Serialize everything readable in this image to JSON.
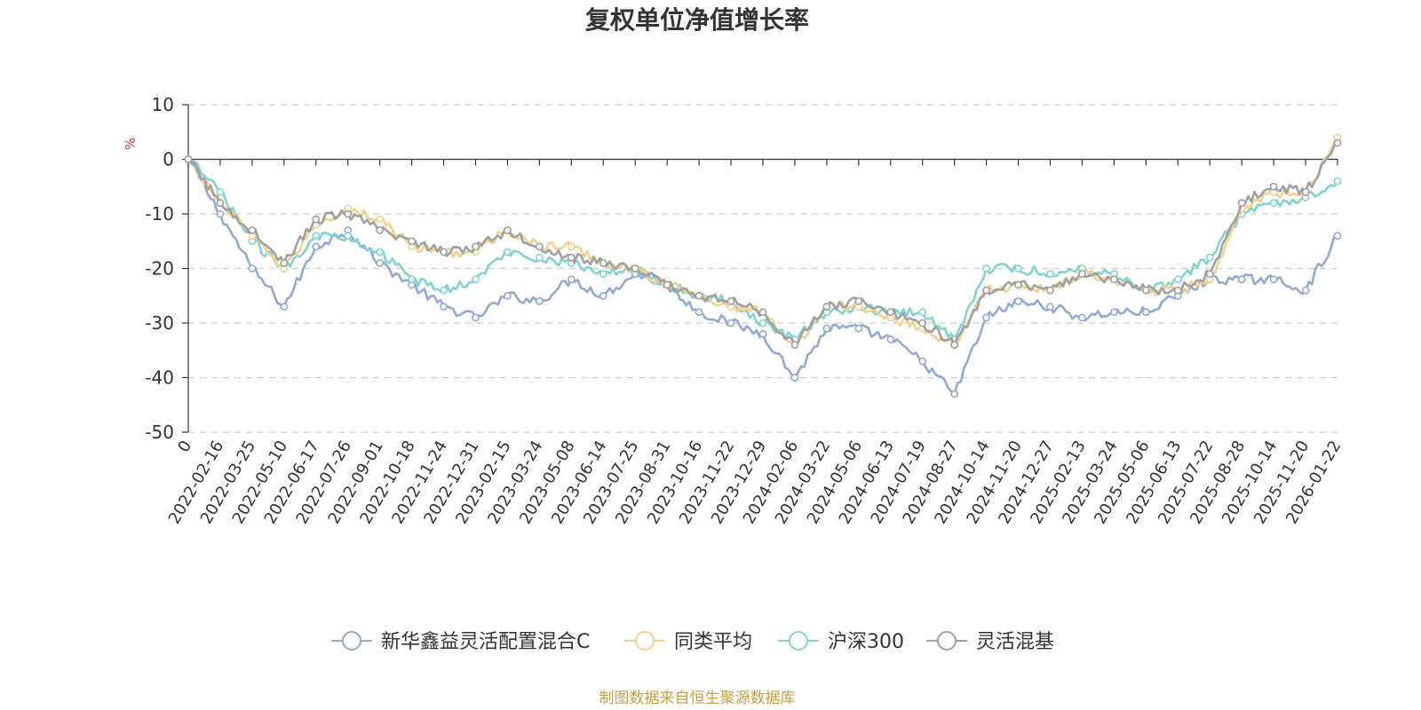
{
  "chart_data": {
    "type": "line",
    "title": "复权单位净值增长率",
    "ylabel": "%",
    "ylim": [
      -50,
      10
    ],
    "yticks": [
      10,
      0,
      -10,
      -20,
      -30,
      -40,
      -50
    ],
    "grid": true,
    "legend_position": "bottom",
    "source_note": "制图数据来自恒生聚源数据库",
    "x": [
      "0",
      "2022-02-16",
      "2022-03-25",
      "2022-05-10",
      "2022-06-17",
      "2022-07-26",
      "2022-09-01",
      "2022-10-18",
      "2022-11-24",
      "2022-12-31",
      "2023-02-15",
      "2023-03-24",
      "2023-05-08",
      "2023-06-14",
      "2023-07-25",
      "2023-08-31",
      "2023-10-16",
      "2023-11-22",
      "2023-12-29",
      "2024-02-06",
      "2024-03-22",
      "2024-05-06",
      "2024-06-13",
      "2024-07-19",
      "2024-08-27",
      "2024-10-14",
      "2024-11-20",
      "2024-12-27",
      "2025-02-13",
      "2025-03-24",
      "2025-05-06",
      "2025-06-13",
      "2025-07-22",
      "2025-08-28",
      "2025-10-14",
      "2025-11-20",
      "2026-01-22"
    ],
    "series": [
      {
        "name": "新华鑫益灵活配置混合C",
        "color": "#8fa9d8",
        "values": [
          0,
          -10,
          -20,
          -27,
          -16,
          -13,
          -19,
          -23,
          -27,
          -29,
          -25,
          -26,
          -22,
          -25,
          -21,
          -23,
          -28,
          -30,
          -32,
          -40,
          -31,
          -31,
          -33,
          -37,
          -43,
          -29,
          -26,
          -27,
          -29,
          -28,
          -28,
          -25,
          -22,
          -22,
          -22,
          -24,
          -14
        ]
      },
      {
        "name": "同类平均",
        "color": "#f5d08a",
        "values": [
          0,
          -8,
          -14,
          -20,
          -12,
          -9,
          -11,
          -16,
          -17,
          -17,
          -13,
          -16,
          -16,
          -19,
          -20,
          -23,
          -25,
          -27,
          -28,
          -34,
          -27,
          -27,
          -29,
          -31,
          -34,
          -24,
          -23,
          -24,
          -21,
          -22,
          -24,
          -24,
          -22,
          -9,
          -6,
          -6,
          4
        ]
      },
      {
        "name": "沪深300",
        "color": "#7ed3d3",
        "values": [
          0,
          -6,
          -15,
          -20,
          -14,
          -14,
          -17,
          -22,
          -24,
          -22,
          -17,
          -18,
          -19,
          -21,
          -20,
          -23,
          -25,
          -26,
          -30,
          -33,
          -28,
          -27,
          -28,
          -28,
          -33,
          -20,
          -20,
          -21,
          -20,
          -21,
          -24,
          -22,
          -18,
          -10,
          -8,
          -7,
          -4
        ]
      },
      {
        "name": "灵活混基",
        "color": "#a0a0a0",
        "values": [
          0,
          -8,
          -13,
          -19,
          -11,
          -10,
          -13,
          -15,
          -17,
          -16,
          -13,
          -16,
          -18,
          -19,
          -20,
          -23,
          -25,
          -26,
          -28,
          -34,
          -27,
          -26,
          -28,
          -30,
          -34,
          -24,
          -23,
          -24,
          -21,
          -22,
          -24,
          -24,
          -21,
          -8,
          -5,
          -6,
          3
        ]
      }
    ]
  }
}
